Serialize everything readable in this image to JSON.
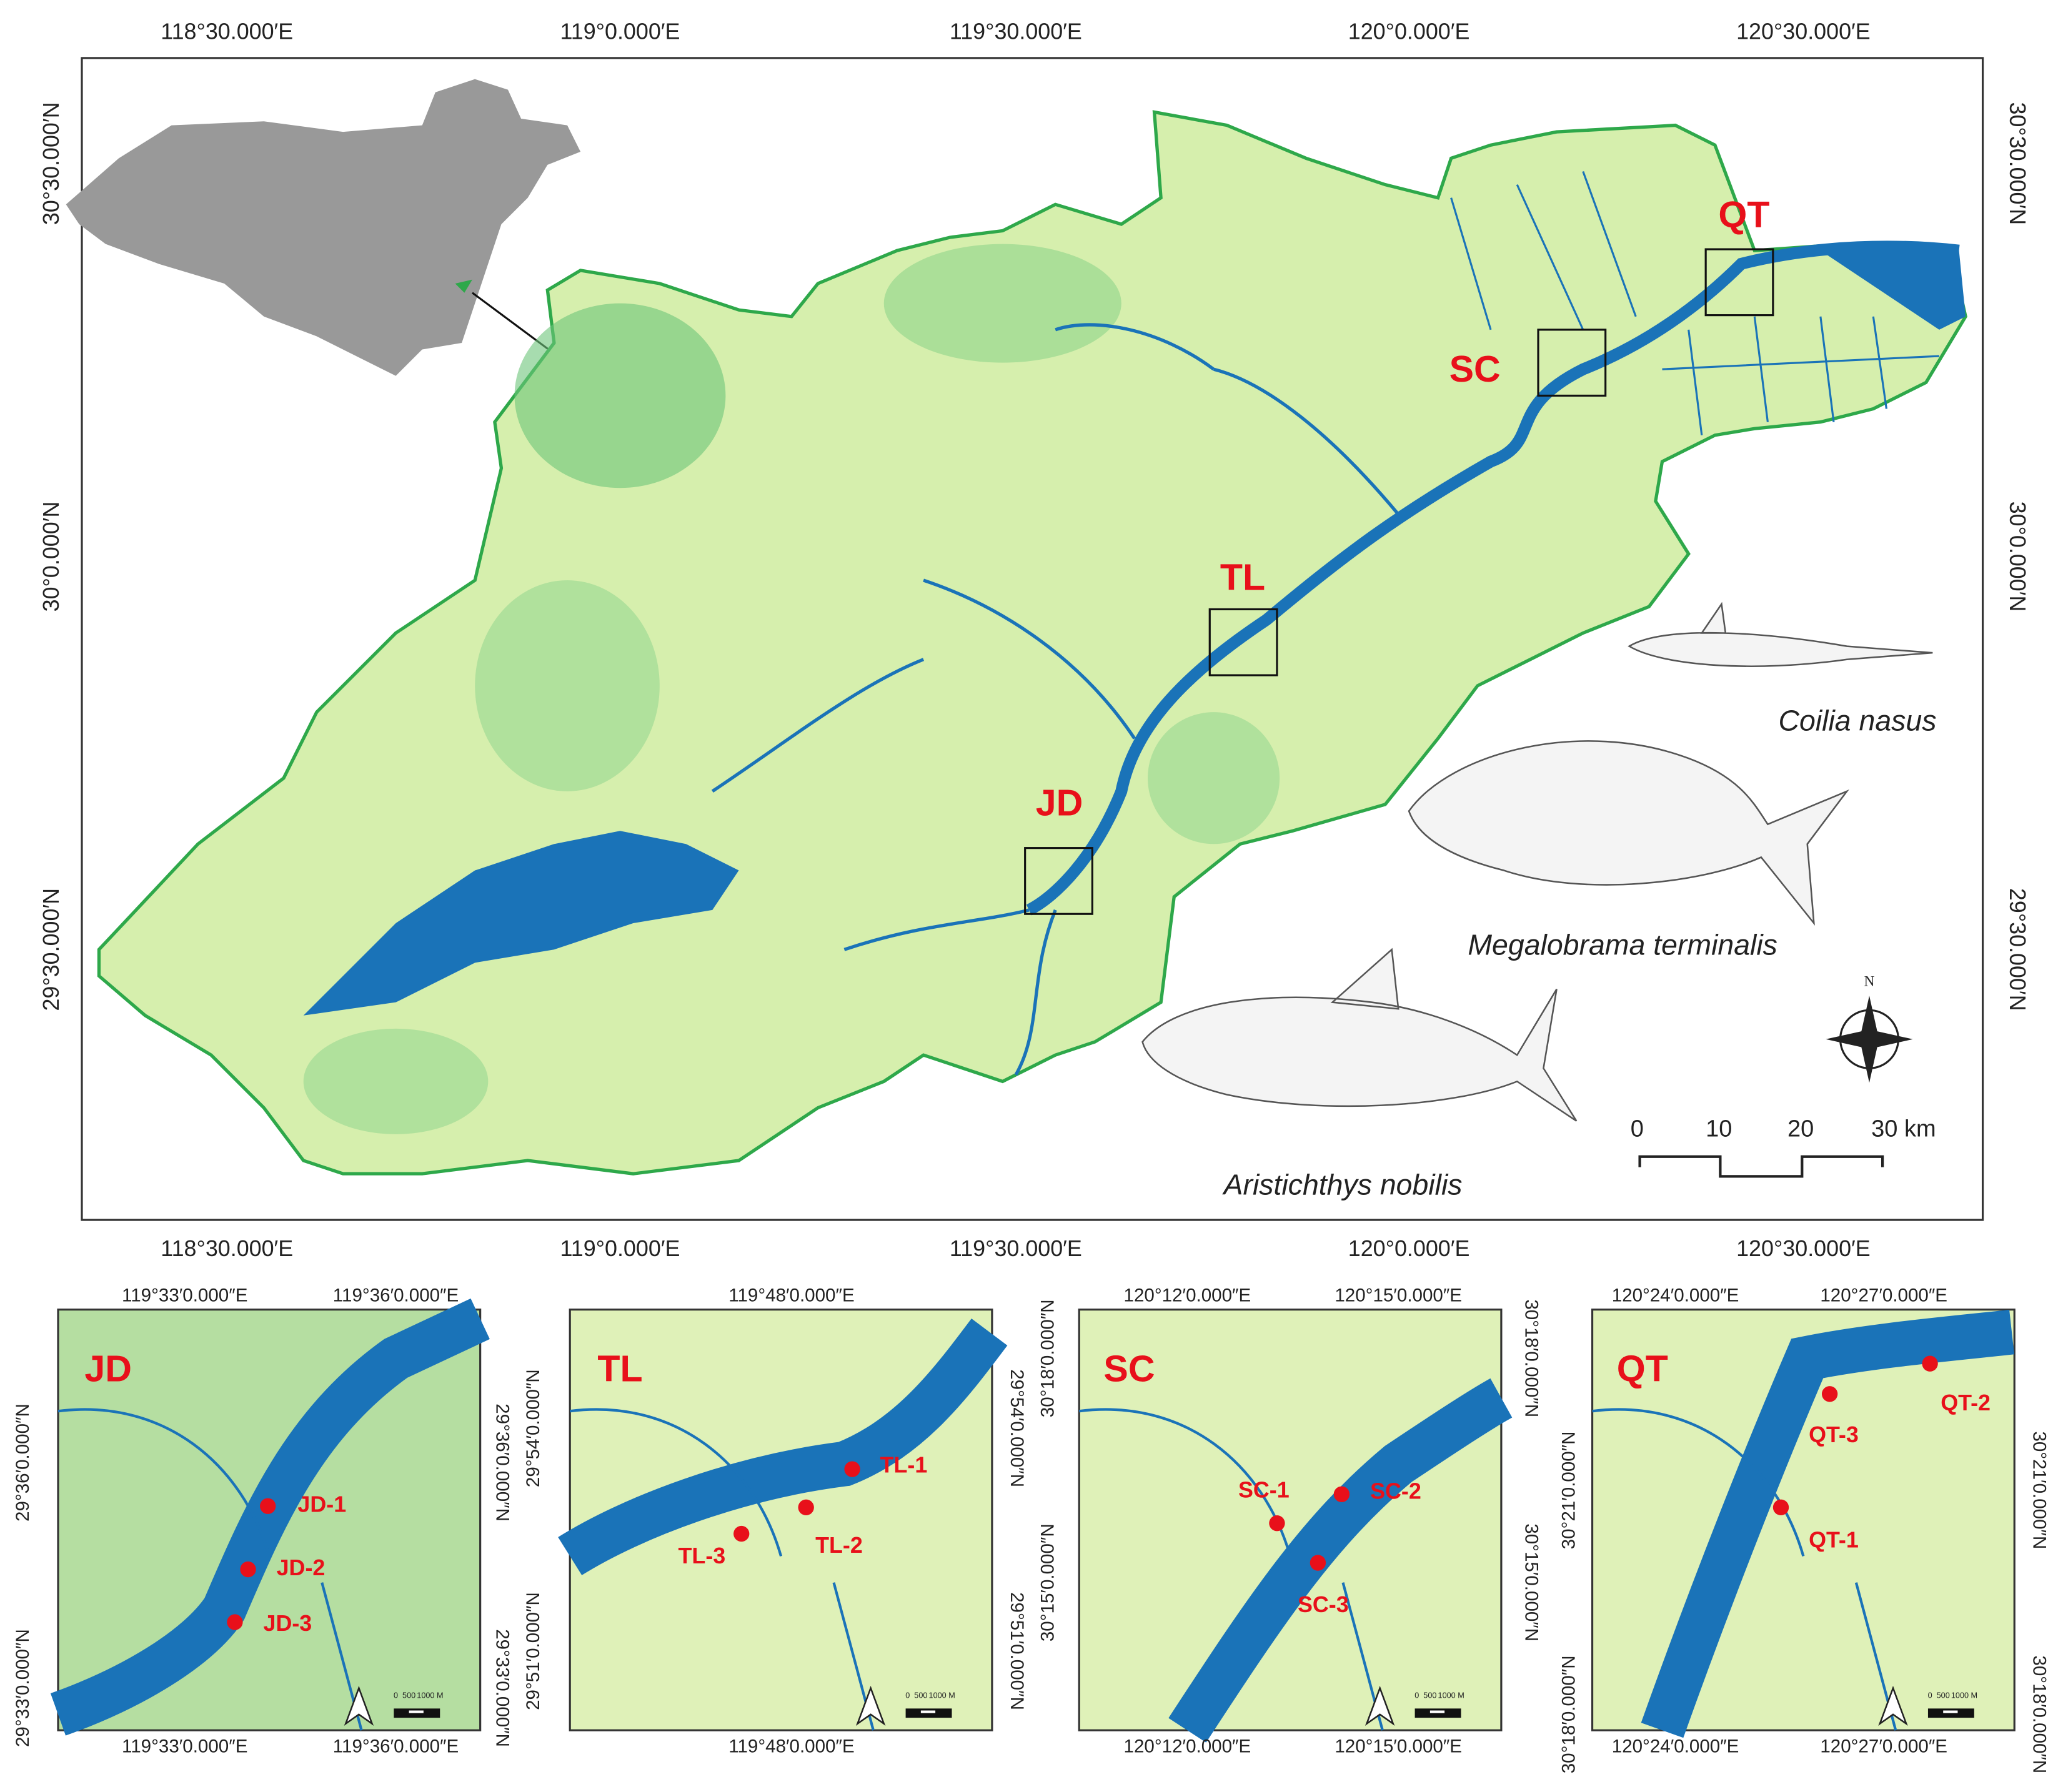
{
  "main_map": {
    "lon_labels": [
      "118°30.000′E",
      "119°0.000′E",
      "119°30.000′E",
      "120°0.000′E",
      "120°30.000′E"
    ],
    "lat_labels": [
      "30°30.000′N",
      "30°0.000′N",
      "29°30.000′N"
    ],
    "sites": [
      "QT",
      "SC",
      "TL",
      "JD"
    ],
    "species": [
      "Coilia nasus",
      "Megalobrama terminalis",
      "Aristichthys nobilis"
    ],
    "scale_labels": [
      "0",
      "10",
      "20",
      "30 km"
    ],
    "north_label": "N"
  },
  "insets": [
    {
      "title": "JD",
      "lon_labels": [
        "119°33′0.000″E",
        "119°36′0.000″E"
      ],
      "lat_labels": [
        "29°36′0.000″N",
        "29°33′0.000″N"
      ],
      "points": [
        "JD-1",
        "JD-2",
        "JD-3"
      ],
      "scale_labels": [
        "0",
        "500",
        "1000 M"
      ]
    },
    {
      "title": "TL",
      "lon_labels": [
        "119°48′0.000″E"
      ],
      "lat_labels": [
        "29°54′0.000″N",
        "29°51′0.000″N"
      ],
      "points": [
        "TL-1",
        "TL-2",
        "TL-3"
      ],
      "scale_labels": [
        "0",
        "500",
        "1000 M"
      ]
    },
    {
      "title": "SC",
      "lon_labels": [
        "120°12′0.000″E",
        "120°15′0.000″E"
      ],
      "lat_labels": [
        "30°18′0.000″N",
        "30°15′0.000″N"
      ],
      "points": [
        "SC-1",
        "SC-2",
        "SC-3"
      ],
      "scale_labels": [
        "0",
        "500",
        "1000 M"
      ]
    },
    {
      "title": "QT",
      "lon_labels": [
        "120°24′0.000″E",
        "120°27′0.000″E"
      ],
      "lat_labels": [
        "30°21′0.000″N",
        "30°18′0.000″N"
      ],
      "points": [
        "QT-1",
        "QT-2",
        "QT-3"
      ],
      "scale_labels": [
        "0",
        "500",
        "1000 M"
      ]
    }
  ]
}
